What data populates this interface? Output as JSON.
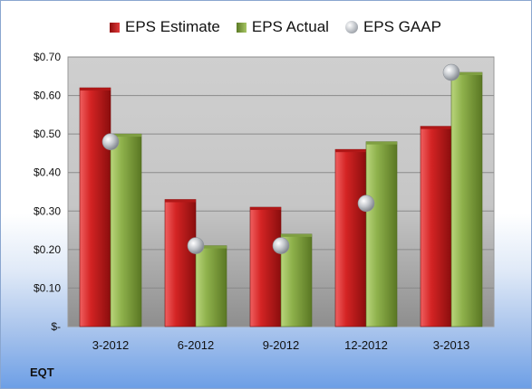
{
  "chart_data": {
    "type": "bar",
    "categories": [
      "3-2012",
      "6-2012",
      "9-2012",
      "12-2012",
      "3-2013"
    ],
    "series": [
      {
        "name": "EPS Estimate",
        "values": [
          0.62,
          0.33,
          0.31,
          0.46,
          0.52
        ],
        "color": "#c8201f",
        "kind": "bar"
      },
      {
        "name": "EPS Actual",
        "values": [
          0.5,
          0.21,
          0.24,
          0.48,
          0.66
        ],
        "color": "#8aae48",
        "kind": "bar"
      },
      {
        "name": "EPS GAAP",
        "values": [
          0.48,
          0.21,
          0.21,
          0.32,
          0.66
        ],
        "color": "#b7bbc1",
        "kind": "marker"
      }
    ],
    "yticks": [
      "$-",
      "$0.10",
      "$0.20",
      "$0.30",
      "$0.40",
      "$0.50",
      "$0.60",
      "$0.70"
    ],
    "ylim": [
      0,
      0.7
    ],
    "grid": true,
    "legend_position": "top"
  },
  "ticker": "EQT"
}
